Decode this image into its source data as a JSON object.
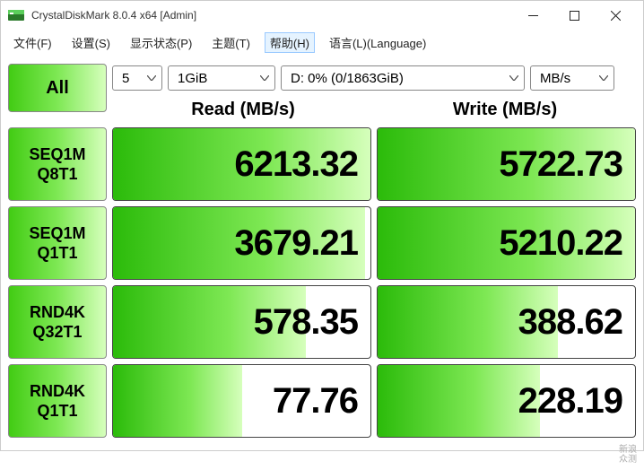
{
  "window": {
    "title": "CrystalDiskMark 8.0.4 x64 [Admin]"
  },
  "menu": {
    "file": "文件(F)",
    "settings": "设置(S)",
    "display": "显示状态(P)",
    "theme": "主题(T)",
    "help": "帮助(H)",
    "language": "语言(L)(Language)"
  },
  "toolbar": {
    "all_label": "All",
    "loops": "5",
    "block_size": "1GiB",
    "drive": "D: 0% (0/1863GiB)",
    "unit": "MB/s"
  },
  "headers": {
    "read": "Read (MB/s)",
    "write": "Write (MB/s)"
  },
  "tests": [
    {
      "label1": "SEQ1M",
      "label2": "Q8T1",
      "read": "6213.32",
      "write": "5722.73",
      "read_fill": 100,
      "write_fill": 100
    },
    {
      "label1": "SEQ1M",
      "label2": "Q1T1",
      "read": "3679.21",
      "write": "5210.22",
      "read_fill": 98,
      "write_fill": 100
    },
    {
      "label1": "RND4K",
      "label2": "Q32T1",
      "read": "578.35",
      "write": "388.62",
      "read_fill": 75,
      "write_fill": 70
    },
    {
      "label1": "RND4K",
      "label2": "Q1T1",
      "read": "77.76",
      "write": "228.19",
      "read_fill": 50,
      "write_fill": 63
    }
  ],
  "colors": {
    "grad_start": "#2bbb0a",
    "grad_mid": "#7ee854",
    "grad_end": "#d6ffbc",
    "border": "#444444"
  },
  "watermark": {
    "line1": "新浪",
    "line2": "众测"
  }
}
